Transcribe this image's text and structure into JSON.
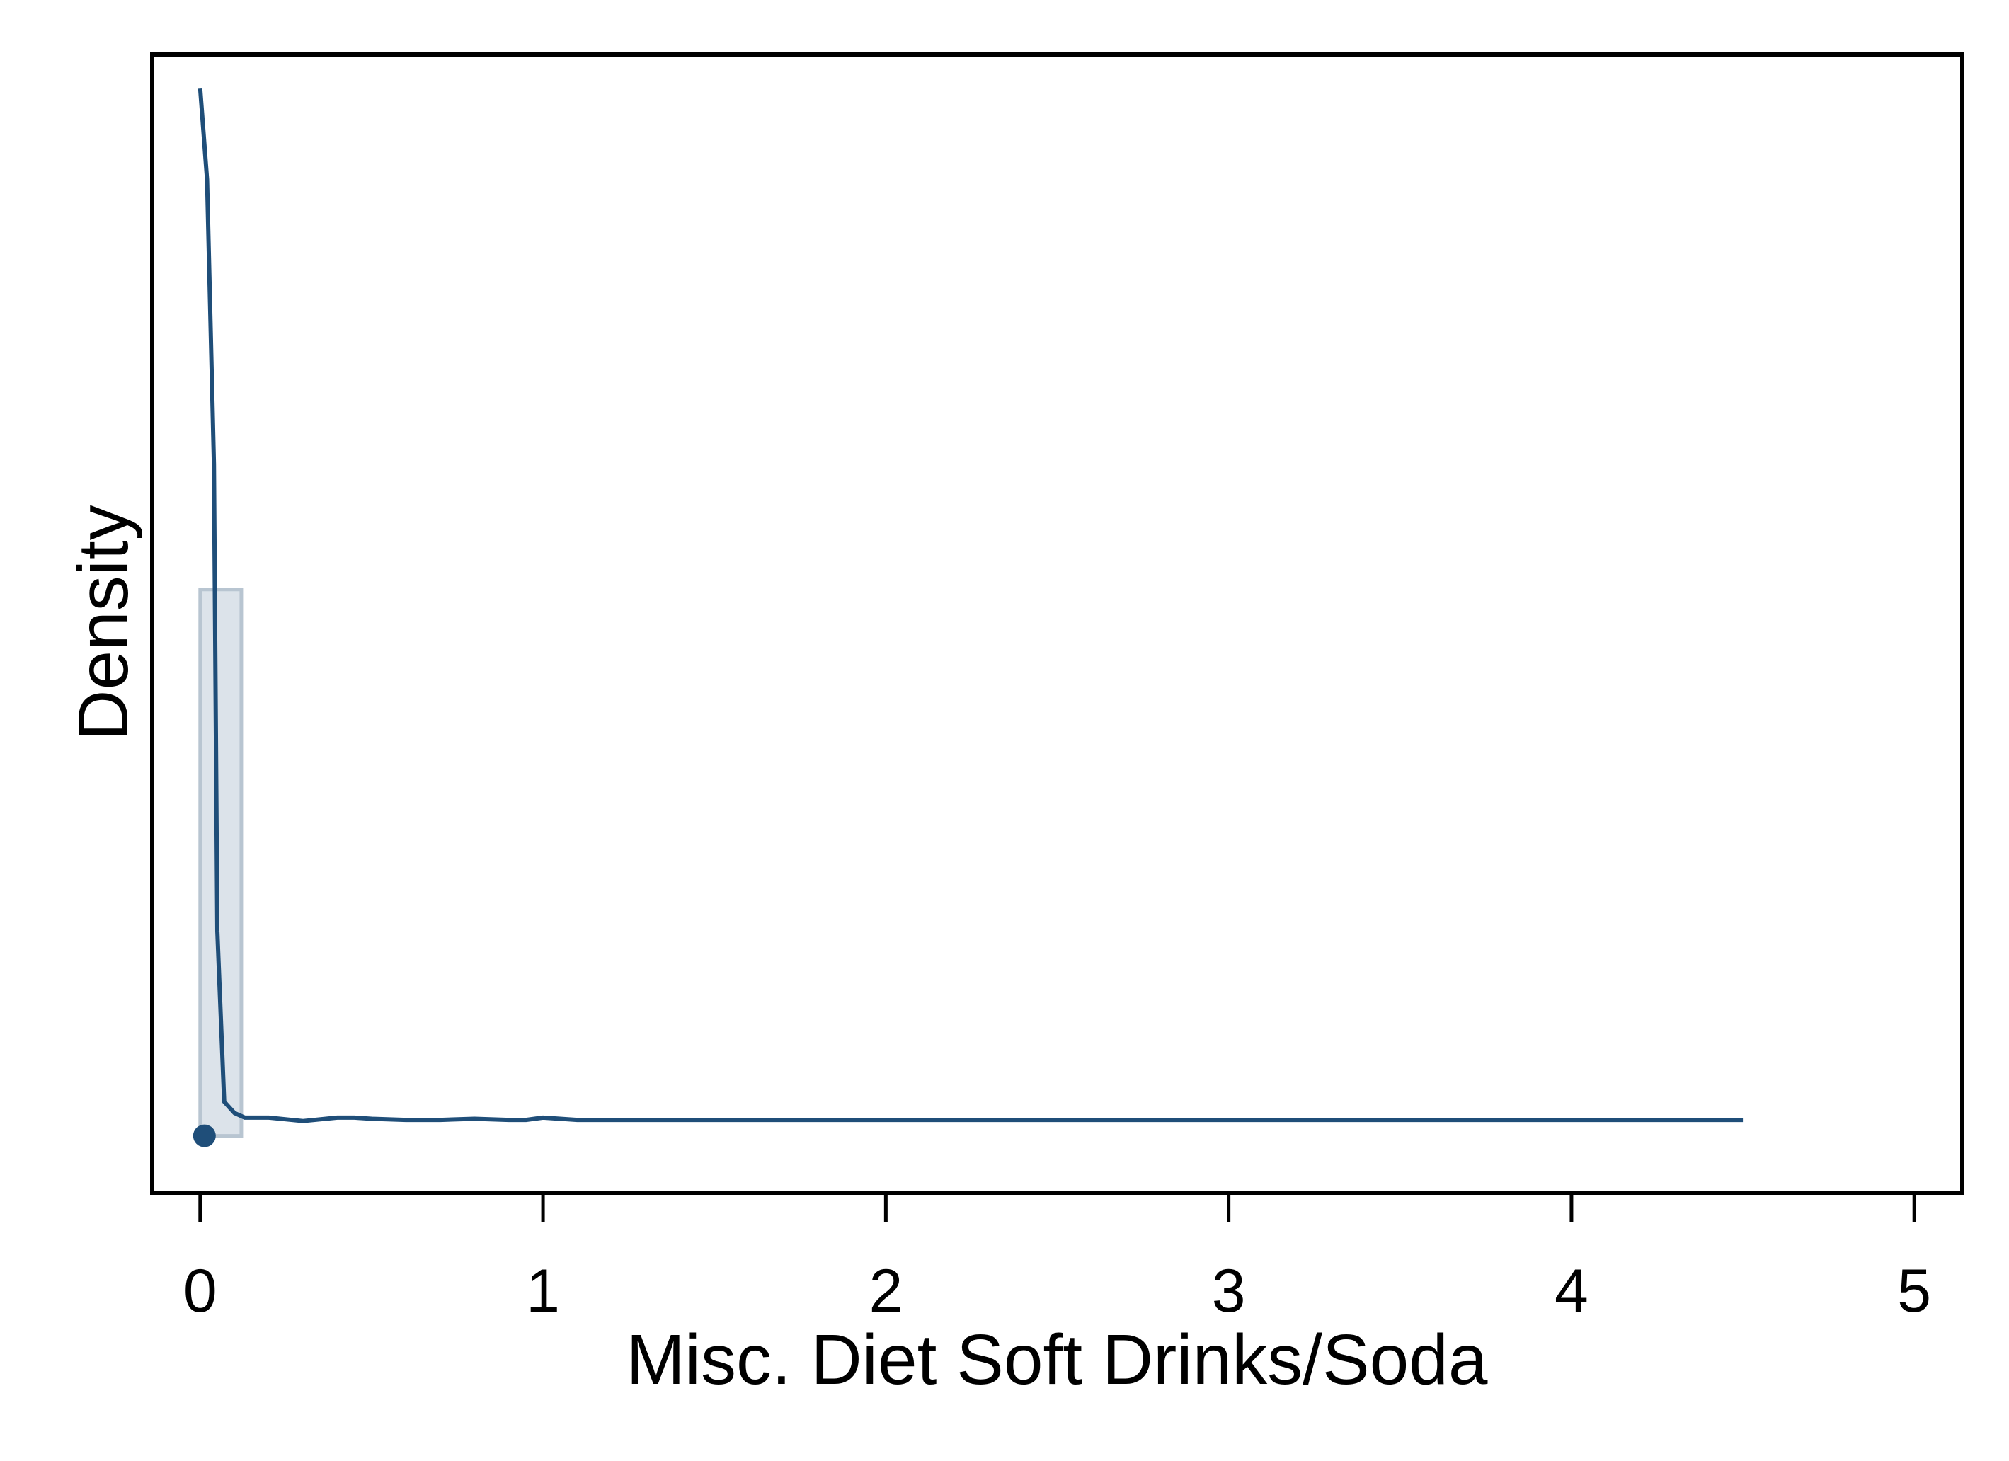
{
  "chart_data": {
    "type": "area",
    "xlabel": "Misc. Diet Soft Drinks/Soda",
    "ylabel": "Density",
    "xlim": [
      -0.14,
      5.14
    ],
    "x_ticks": [
      0,
      1,
      2,
      3,
      4,
      5
    ],
    "x_tick_labels": [
      "0",
      "1",
      "2",
      "3",
      "4",
      "5"
    ],
    "y_tick_labels": [],
    "grid": false,
    "legend": "none",
    "colors": {
      "line": "#1f4e79",
      "histogram_fill": "#dce3ea",
      "histogram_stroke": "#b8c5d1",
      "frame": "#000000"
    },
    "histogram": {
      "bins": [
        {
          "x0": 0.0,
          "x1": 0.12,
          "height_fraction": 0.53
        }
      ]
    },
    "density": {
      "x": [
        0.0,
        0.02,
        0.04,
        0.05,
        0.07,
        0.1,
        0.13,
        0.2,
        0.3,
        0.4,
        0.45,
        0.5,
        0.6,
        0.7,
        0.8,
        0.9,
        0.95,
        1.0,
        1.05,
        1.1,
        1.2,
        1.25,
        1.3,
        1.5,
        2.0,
        2.5,
        3.0,
        3.5,
        4.0,
        4.5
      ],
      "y_fraction": [
        0.97,
        0.89,
        0.64,
        0.23,
        0.08,
        0.07,
        0.066,
        0.066,
        0.063,
        0.066,
        0.066,
        0.065,
        0.064,
        0.064,
        0.065,
        0.064,
        0.064,
        0.066,
        0.065,
        0.064,
        0.064,
        0.064,
        0.064,
        0.064,
        0.064,
        0.064,
        0.064,
        0.064,
        0.064,
        0.064
      ]
    },
    "point": {
      "x": 0.0,
      "y_fraction": 0.05
    }
  }
}
